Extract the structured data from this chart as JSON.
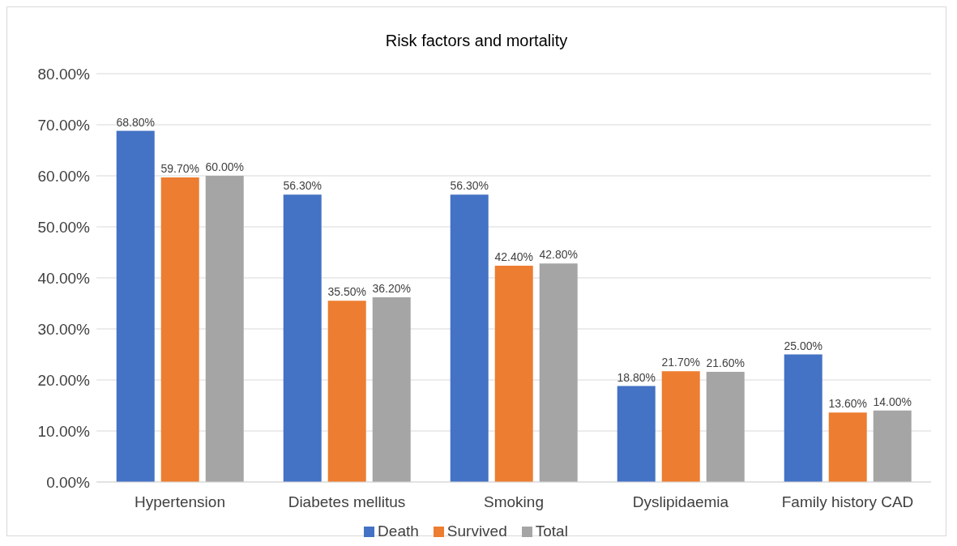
{
  "chart_data": {
    "type": "bar",
    "title": "Risk factors and mortality",
    "categories": [
      "Hypertension",
      "Diabetes mellitus",
      "Smoking",
      "Dyslipidaemia",
      "Family history CAD"
    ],
    "series": [
      {
        "name": "Death",
        "color": "#4472c4",
        "values": [
          68.8,
          56.3,
          56.3,
          18.8,
          25.0
        ],
        "value_labels": [
          "68.80%",
          "56.30%",
          "56.30%",
          "18.80%",
          "25.00%"
        ]
      },
      {
        "name": "Survived",
        "color": "#ed7d31",
        "values": [
          59.7,
          35.5,
          42.4,
          21.7,
          13.6
        ],
        "value_labels": [
          "59.70%",
          "35.50%",
          "42.40%",
          "21.70%",
          "13.60%"
        ]
      },
      {
        "name": "Total",
        "color": "#a5a5a5",
        "values": [
          60.0,
          36.2,
          42.8,
          21.6,
          14.0
        ],
        "value_labels": [
          "60.00%",
          "36.20%",
          "42.80%",
          "21.60%",
          "14.00%"
        ]
      }
    ],
    "ylim": [
      0,
      80
    ],
    "yticks": [
      {
        "value": 0,
        "label": "0.00%"
      },
      {
        "value": 10,
        "label": "10.00%"
      },
      {
        "value": 20,
        "label": "20.00%"
      },
      {
        "value": 30,
        "label": "30.00%"
      },
      {
        "value": 40,
        "label": "40.00%"
      },
      {
        "value": 50,
        "label": "50.00%"
      },
      {
        "value": 60,
        "label": "60.00%"
      },
      {
        "value": 70,
        "label": "70.00%"
      },
      {
        "value": 80,
        "label": "80.00%"
      }
    ],
    "grid": "y",
    "legend": "bottom"
  }
}
